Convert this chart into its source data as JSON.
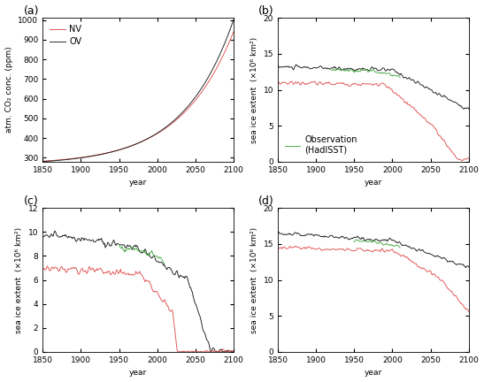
{
  "fig_width": 5.47,
  "fig_height": 4.32,
  "dpi": 100,
  "colors": {
    "NV": "#e05050",
    "OV": "#1a1a1a",
    "obs": "#44aa44"
  },
  "panel_labels": [
    "(a)",
    "(b)",
    "(c)",
    "(d)"
  ],
  "panel_a": {
    "ylabel": "atm. CO₂ conc. (ppm)",
    "xlabel": "year",
    "ylim": [
      280,
      1010
    ],
    "yticks": [
      300,
      400,
      500,
      600,
      700,
      800,
      900,
      1000
    ],
    "xticks": [
      1850,
      1900,
      1950,
      2000,
      2050,
      2100
    ],
    "legend_NV": "NV",
    "legend_OV": "OV"
  },
  "panel_b": {
    "ylabel": "sea ice extent  (×10⁶ km²)",
    "xlabel": "year",
    "ylim": [
      0,
      20
    ],
    "yticks": [
      0,
      5,
      10,
      15,
      20
    ],
    "xticks": [
      1850,
      1900,
      1950,
      2000,
      2050,
      2100
    ],
    "legend_text": "Observation\n(HadISST)"
  },
  "panel_c": {
    "ylabel": "sea ice extent  (×10⁶ km²)",
    "xlabel": "year",
    "ylim": [
      0,
      12
    ],
    "yticks": [
      0,
      2,
      4,
      6,
      8,
      10,
      12
    ],
    "xticks": [
      1850,
      1900,
      1950,
      2000,
      2050,
      2100
    ]
  },
  "panel_d": {
    "ylabel": "sea ice extent  (×10⁶ km²)",
    "xlabel": "year",
    "ylim": [
      0,
      20
    ],
    "yticks": [
      0,
      5,
      10,
      15,
      20
    ],
    "xticks": [
      1850,
      1900,
      1950,
      2000,
      2050,
      2100
    ]
  }
}
